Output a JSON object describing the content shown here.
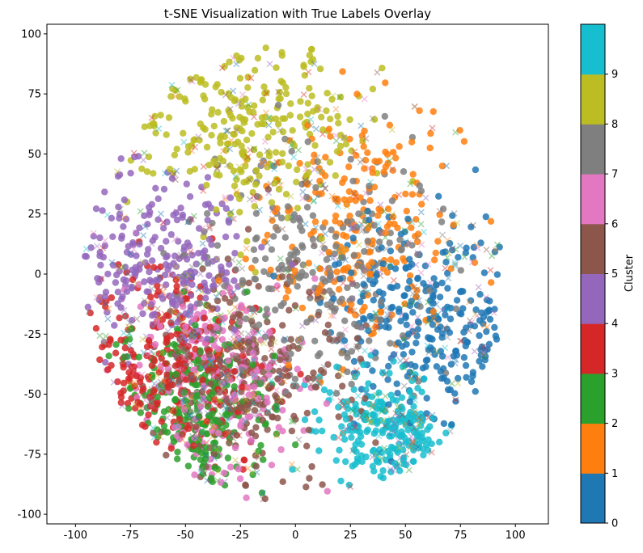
{
  "chart_data": {
    "type": "scatter",
    "title": "t-SNE Visualization with True Labels Overlay",
    "xlabel": "",
    "ylabel": "",
    "xlim": [
      -113,
      115
    ],
    "ylim": [
      -104,
      104
    ],
    "xticks": [
      -100,
      -75,
      -50,
      -25,
      0,
      25,
      50,
      75,
      100
    ],
    "yticks": [
      -100,
      -75,
      -50,
      -25,
      0,
      25,
      50,
      75,
      100
    ],
    "grid": false,
    "point_description": "approx. dense cloud of points colored by cluster label (0-9), overlaid with semi-transparent 'x' markers for true labels",
    "clusters": [
      {
        "label": "0",
        "color": "#1f77b4",
        "center": [
          60,
          -20
        ],
        "spread": [
          30,
          30
        ]
      },
      {
        "label": "1",
        "color": "#ff7f0e",
        "center": [
          30,
          20
        ],
        "spread": [
          35,
          35
        ]
      },
      {
        "label": "2",
        "color": "#2ca02c",
        "center": [
          -45,
          -55
        ],
        "spread": [
          25,
          25
        ]
      },
      {
        "label": "3",
        "color": "#d62728",
        "center": [
          -55,
          -35
        ],
        "spread": [
          25,
          25
        ]
      },
      {
        "label": "4",
        "color": "#9467bd",
        "center": [
          -60,
          5
        ],
        "spread": [
          25,
          25
        ]
      },
      {
        "label": "5",
        "color": "#8c564b",
        "center": [
          -20,
          -40
        ],
        "spread": [
          30,
          30
        ]
      },
      {
        "label": "6",
        "color": "#e377c2",
        "center": [
          -35,
          -45
        ],
        "spread": [
          25,
          30
        ]
      },
      {
        "label": "7",
        "color": "#7f7f7f",
        "center": [
          10,
          0
        ],
        "spread": [
          35,
          35
        ]
      },
      {
        "label": "8",
        "color": "#bcbd22",
        "center": [
          -20,
          60
        ],
        "spread": [
          35,
          25
        ]
      },
      {
        "label": "9",
        "color": "#17becf",
        "center": [
          40,
          -65
        ],
        "spread": [
          20,
          15
        ]
      }
    ],
    "colorbar": {
      "label": "Cluster",
      "colors": [
        "#1f77b4",
        "#ff7f0e",
        "#2ca02c",
        "#d62728",
        "#9467bd",
        "#8c564b",
        "#e377c2",
        "#7f7f7f",
        "#bcbd22",
        "#17becf"
      ],
      "tick_labels": [
        "0",
        "1",
        "2",
        "3",
        "4",
        "5",
        "6",
        "7",
        "8",
        "9"
      ]
    }
  }
}
